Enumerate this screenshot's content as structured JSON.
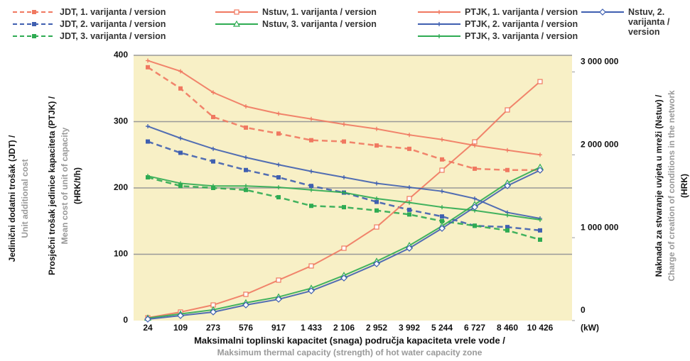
{
  "chart_data": {
    "type": "line",
    "categories": [
      "24",
      "109",
      "273",
      "576",
      "917",
      "1 433",
      "2 106",
      "2 952",
      "3 992",
      "5 244",
      "6 727",
      "8 460",
      "10 426"
    ],
    "x_unit": "(kW)",
    "x_label": [
      "Maksimalni toplinski kapacitet (snaga) područja kapaciteta vrele vode /",
      "Maksimum thermal capacity (strength) of hot water capacity zone"
    ],
    "y_label_1": [
      "Jedinični dodatni trošak (JDT) /",
      "Unit additional cost"
    ],
    "y_label_2": [
      "Prosječni trošak jedinice kapaciteta (PTJK) /",
      "Mean cost of unit of capacity",
      "(HRK/t/h)"
    ],
    "y2_label": [
      "Naknada za stvaranje uvjeta u mreži (Nstuv) /",
      "Charge of creation of conditions in the network",
      "(HRK)"
    ],
    "ylim": [
      0,
      400
    ],
    "yticks": [
      0,
      100,
      200,
      300,
      400
    ],
    "y2lim": [
      0,
      3200000
    ],
    "y2ticks": [
      0,
      {
        "value": 1000000,
        "label": "1 000 000"
      },
      {
        "value": 2000000,
        "label": "2 000 000"
      },
      {
        "value": 3000000,
        "label": "3 000 000"
      }
    ],
    "grid": true,
    "series": [
      {
        "name": "JDT, 1. varijanta / version",
        "color": "#f07860",
        "dash": true,
        "marker": "square",
        "values": [
          382,
          350,
          307,
          291,
          282,
          272,
          270,
          264,
          259,
          243,
          229,
          227,
          227
        ]
      },
      {
        "name": "JDT, 2. varijanta / version",
        "color": "#3f5fb0",
        "dash": true,
        "marker": "square",
        "values": [
          270,
          253,
          240,
          227,
          216,
          203,
          193,
          179,
          167,
          157,
          143,
          141,
          136
        ]
      },
      {
        "name": "JDT, 3. varijanta / version",
        "color": "#2eab52",
        "dash": true,
        "marker": "square",
        "values": [
          216,
          203,
          200,
          197,
          186,
          173,
          171,
          166,
          160,
          150,
          143,
          136,
          122
        ]
      },
      {
        "name": "Nstuv, 1. varijanta / version",
        "color": "#f07860",
        "marker": "opensquare",
        "axis": "y2",
        "values": [
          34000,
          103000,
          188000,
          317000,
          488000,
          659000,
          873000,
          1129000,
          1472000,
          1814000,
          2156000,
          2541000,
          2883000
        ]
      },
      {
        "name": "Nstuv, 3. varijanta / version",
        "color": "#2eab52",
        "marker": "triangle",
        "axis": "y2",
        "values": [
          30000,
          80000,
          130000,
          215000,
          285000,
          390000,
          545000,
          715000,
          905000,
          1140000,
          1400000,
          1660000,
          1850000
        ]
      },
      {
        "name": "PTJK, 1. varijanta / version",
        "color": "#f07860",
        "marker": "plus",
        "values": [
          392,
          376,
          344,
          323,
          312,
          304,
          296,
          289,
          280,
          273,
          264,
          257,
          250
        ]
      },
      {
        "name": "PTJK, 2. varijanta / version",
        "color": "#3f5fb0",
        "marker": "plus",
        "values": [
          293,
          275,
          259,
          246,
          235,
          225,
          216,
          207,
          201,
          195,
          184,
          163,
          154
        ]
      },
      {
        "name": "PTJK, 3. varijanta / version",
        "color": "#2eab52",
        "marker": "plus",
        "values": [
          218,
          207,
          203,
          203,
          201,
          197,
          193,
          184,
          178,
          171,
          166,
          159,
          152
        ]
      },
      {
        "name": "Nstuv, 2. varijanta / version",
        "color": "#3f5fb0",
        "marker": "diamond",
        "axis": "y2",
        "values": [
          17000,
          60000,
          103000,
          188000,
          257000,
          359000,
          513000,
          684000,
          873000,
          1112000,
          1369000,
          1626000,
          1814000
        ]
      }
    ]
  }
}
